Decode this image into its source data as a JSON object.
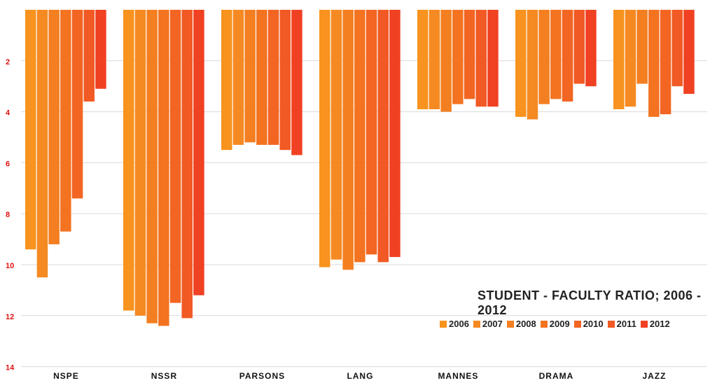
{
  "chart_data": {
    "type": "bar",
    "title": "STUDENT - FACULTY RATIO; 2006 - 2012",
    "categories": [
      "NSPE",
      "NSSR",
      "PARSONS",
      "LANG",
      "MANNES",
      "DRAMA",
      "JAZZ"
    ],
    "y_axis": {
      "ticks": [
        2,
        4,
        6,
        8,
        10,
        12,
        14
      ],
      "range": [
        0,
        14
      ],
      "inverted": true,
      "tick_color": "#e01010"
    },
    "grid": true,
    "legend_position": "bottom-right",
    "series": [
      {
        "name": "2006",
        "color": "#f7931e",
        "values": [
          9.4,
          11.8,
          5.5,
          10.1,
          3.9,
          4.2,
          3.9
        ]
      },
      {
        "name": "2007",
        "color": "#f58a22",
        "values": [
          10.5,
          12.0,
          5.3,
          9.8,
          3.9,
          4.3,
          3.8
        ]
      },
      {
        "name": "2008",
        "color": "#f47f21",
        "values": [
          9.2,
          12.3,
          5.2,
          10.2,
          4.0,
          3.7,
          2.9
        ]
      },
      {
        "name": "2009",
        "color": "#f37321",
        "values": [
          8.7,
          12.4,
          5.3,
          9.9,
          3.7,
          3.5,
          4.2
        ]
      },
      {
        "name": "2010",
        "color": "#f26522",
        "values": [
          7.4,
          11.5,
          5.3,
          9.6,
          3.5,
          3.6,
          4.1
        ]
      },
      {
        "name": "2011",
        "color": "#f15a24",
        "values": [
          3.6,
          12.1,
          5.5,
          9.9,
          3.8,
          2.9,
          3.0
        ]
      },
      {
        "name": "2012",
        "color": "#f04123",
        "values": [
          3.1,
          11.2,
          5.7,
          9.7,
          3.8,
          3.0,
          3.3
        ]
      }
    ]
  }
}
